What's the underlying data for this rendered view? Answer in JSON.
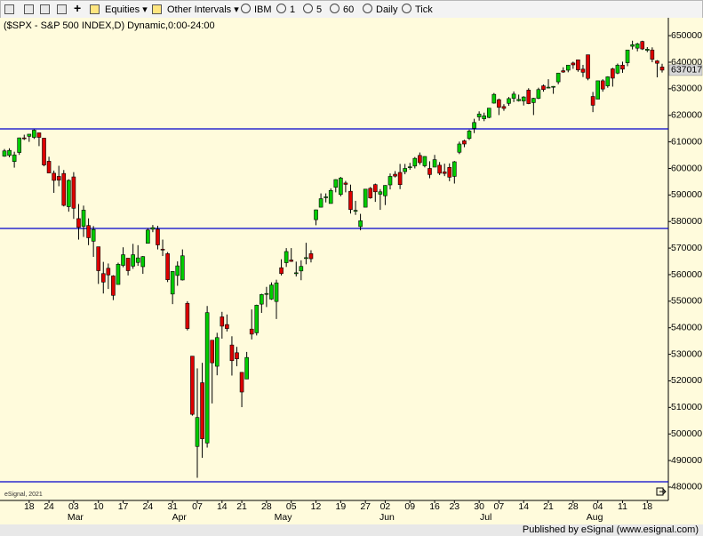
{
  "toolbar": {
    "items": [
      "Equities",
      "Other Intervals",
      "IBM",
      "1",
      "5",
      "60",
      "Daily",
      "Tick"
    ]
  },
  "footer": {
    "watermark": "eSignal, 2021",
    "published": "Published by eSignal (www.esignal.com)"
  },
  "chart_data": {
    "type": "candlestick",
    "title": "($SPX - S&P 500 INDEX,D) Dynamic,0:00-24:00",
    "up_color": "#00cc00",
    "down_color": "#dd0000",
    "hline_color": "#0000cc",
    "ylim": [
      475300,
      656400
    ],
    "yticks": [
      480000,
      490000,
      500000,
      510000,
      520000,
      530000,
      540000,
      550000,
      560000,
      570000,
      580000,
      590000,
      600000,
      610000,
      620000,
      630000,
      640000,
      650000
    ],
    "hlines": [
      614900,
      577400,
      482000
    ],
    "categories": [
      null,
      null,
      null,
      null,
      null,
      "18",
      null,
      null,
      null,
      "24",
      null,
      null,
      null,
      null,
      "03",
      null,
      null,
      null,
      null,
      "10",
      null,
      null,
      null,
      null,
      "17",
      null,
      null,
      null,
      null,
      "24",
      null,
      null,
      null,
      null,
      "31",
      null,
      null,
      null,
      null,
      "07",
      null,
      null,
      null,
      null,
      "14",
      null,
      null,
      null,
      "21",
      null,
      null,
      null,
      null,
      "28",
      null,
      null,
      null,
      null,
      "05",
      null,
      null,
      null,
      null,
      "12",
      null,
      null,
      null,
      null,
      "19",
      null,
      null,
      null,
      null,
      "27",
      null,
      null,
      null,
      "02",
      null,
      null,
      null,
      null,
      "09",
      null,
      null,
      null,
      null,
      "16",
      null,
      null,
      null,
      "23",
      null,
      null,
      null,
      null,
      "30",
      null,
      null,
      null,
      "07",
      null,
      null,
      null,
      null,
      "14",
      null,
      null,
      null,
      null,
      "21",
      null,
      null,
      null,
      null,
      "28",
      null,
      null,
      null,
      null,
      "04",
      null,
      null,
      null,
      null,
      "11",
      null,
      null,
      null,
      null,
      "18",
      null,
      null,
      null
    ],
    "months": [
      null,
      null,
      null,
      null,
      null,
      null,
      null,
      null,
      null,
      null,
      null,
      null,
      null,
      null,
      "Mar",
      null,
      null,
      null,
      null,
      null,
      null,
      null,
      null,
      null,
      null,
      null,
      null,
      null,
      null,
      null,
      null,
      null,
      null,
      null,
      null,
      "Apr",
      null,
      null,
      null,
      null,
      null,
      null,
      null,
      null,
      null,
      null,
      null,
      null,
      null,
      null,
      null,
      null,
      null,
      null,
      null,
      null,
      "May",
      null,
      null,
      null,
      null,
      null,
      null,
      null,
      null,
      null,
      null,
      null,
      null,
      null,
      null,
      null,
      null,
      null,
      null,
      null,
      null,
      "Jun",
      null,
      null,
      null,
      null,
      null,
      null,
      null,
      null,
      null,
      null,
      null,
      null,
      null,
      null,
      null,
      null,
      null,
      null,
      null,
      "Jul",
      null,
      null,
      null,
      null,
      null,
      null,
      null,
      null,
      null,
      null,
      null,
      null,
      null,
      null,
      null,
      null,
      null,
      null,
      null,
      null,
      null,
      "Aug",
      null,
      null,
      null,
      null,
      null,
      null,
      null,
      null,
      null,
      null,
      null,
      null,
      null,
      null
    ],
    "open": [
      604600,
      604900,
      602600,
      606000,
      611500,
      612100,
      611700,
      613400,
      611400,
      602700,
      598200,
      597000,
      598100,
      585600,
      596800,
      581100,
      578200,
      578500,
      572600,
      570500,
      560400,
      562400,
      559500,
      556300,
      563500,
      566200,
      563200,
      564600,
      563000,
      571800,
      577100,
      577100,
      569600,
      567900,
      552700,
      559700,
      558000,
      549200,
      529300,
      495300,
      519300,
      496600,
      535300,
      525500,
      544100,
      541200,
      533500,
      530600,
      523200,
      520700,
      539500,
      538100,
      548900,
      552900,
      550800,
      549900,
      562600,
      564500,
      565500,
      560600,
      561400,
      566300,
      567900,
      580700,
      585400,
      589100,
      586800,
      592900,
      590200,
      594500,
      591400,
      584100,
      578100,
      585400,
      592500,
      593900,
      590300,
      589700,
      593800,
      597800,
      598500,
      598800,
      600400,
      600900,
      604900,
      601000,
      600000,
      600500,
      601200,
      598700,
      600400,
      597000,
      606100,
      610400,
      611300,
      615100,
      619400,
      618700,
      619200,
      624600,
      625900,
      623300,
      624500,
      626400,
      625500,
      625400,
      629500,
      624800,
      626400,
      631100,
      630500,
      630700,
      632600,
      636800,
      637000,
      639700,
      640900,
      637400,
      642800,
      627100,
      626100,
      633000,
      631100,
      637500,
      635900,
      638900,
      639800,
      646000,
      645300,
      647800,
      644500,
      644600,
      640500,
      638200
    ],
    "high": [
      607300,
      607600,
      606300,
      611600,
      612700,
      612900,
      614700,
      613400,
      611400,
      604400,
      599200,
      601000,
      599400,
      595900,
      598600,
      586600,
      586000,
      581200,
      578300,
      570500,
      564800,
      564200,
      559800,
      564500,
      570300,
      566200,
      571600,
      571100,
      567000,
      577500,
      578700,
      578400,
      573200,
      568500,
      561300,
      565000,
      569500,
      550000,
      529300,
      524700,
      526800,
      548200,
      535300,
      538100,
      546000,
      545000,
      536800,
      532800,
      523200,
      530900,
      546900,
      548700,
      552800,
      555400,
      557100,
      558100,
      565800,
      570000,
      570000,
      564900,
      565400,
      572000,
      569200,
      584500,
      590600,
      590600,
      592500,
      595900,
      596800,
      595300,
      593900,
      587800,
      582900,
      592200,
      593000,
      594300,
      592200,
      593700,
      598100,
      599000,
      601700,
      601700,
      602100,
      604300,
      606000,
      604600,
      602700,
      605100,
      602400,
      601800,
      601900,
      602800,
      610100,
      610800,
      614600,
      618700,
      621500,
      621000,
      622700,
      628400,
      626300,
      624200,
      626900,
      629000,
      627800,
      627200,
      630200,
      626600,
      630400,
      631600,
      633600,
      631000,
      636000,
      638100,
      639000,
      640200,
      641000,
      639000,
      642800,
      628800,
      633000,
      633600,
      634700,
      637900,
      639500,
      640200,
      644600,
      648100,
      647300,
      648100,
      645700,
      645600,
      640800,
      639400
    ],
    "low": [
      604400,
      604200,
      600300,
      605100,
      610700,
      610000,
      611100,
      608400,
      600800,
      598200,
      590800,
      593300,
      585700,
      583700,
      581000,
      573200,
      574200,
      571100,
      566700,
      556500,
      552900,
      554600,
      550400,
      556300,
      562800,
      559700,
      562200,
      563300,
      560300,
      571800,
      576000,
      569500,
      567000,
      557200,
      548900,
      555800,
      557800,
      539000,
      506900,
      483500,
      491000,
      494900,
      511500,
      522100,
      535900,
      538600,
      522000,
      525500,
      510100,
      520700,
      535600,
      537100,
      545600,
      547800,
      550500,
      543300,
      559700,
      562900,
      564800,
      559300,
      557900,
      563900,
      564600,
      578600,
      585300,
      587200,
      586800,
      591000,
      589500,
      591000,
      583000,
      582500,
      576700,
      585400,
      588600,
      587400,
      584400,
      586200,
      592100,
      596600,
      592200,
      597800,
      599500,
      600000,
      601400,
      600400,
      596300,
      600500,
      597500,
      597100,
      595200,
      594300,
      605400,
      608000,
      610700,
      613300,
      618000,
      617800,
      618900,
      624400,
      620100,
      621700,
      623600,
      625000,
      625200,
      623700,
      624200,
      620100,
      626100,
      628900,
      630200,
      628100,
      631700,
      636000,
      636200,
      637500,
      636400,
      634400,
      633200,
      621200,
      626100,
      628900,
      630400,
      630800,
      635500,
      636000,
      638500,
      644800,
      644100,
      644600,
      643800,
      640000,
      634300,
      636100
    ],
    "close": [
      606600,
      606800,
      605100,
      611500,
      611400,
      612900,
      614400,
      611700,
      601300,
      598300,
      595500,
      595600,
      586100,
      595500,
      585000,
      577800,
      584300,
      573900,
      577000,
      561500,
      557200,
      559900,
      552200,
      563900,
      567500,
      561500,
      567500,
      566300,
      566800,
      576800,
      577700,
      571200,
      569300,
      558100,
      561200,
      563300,
      567100,
      539700,
      507400,
      506200,
      498200,
      545700,
      526800,
      536300,
      540600,
      539700,
      527600,
      528300,
      515800,
      528800,
      537600,
      548500,
      552500,
      552900,
      556100,
      556900,
      560400,
      568700,
      565000,
      560700,
      563100,
      566400,
      566000,
      584400,
      588600,
      589300,
      591700,
      595800,
      596400,
      594000,
      584500,
      584200,
      580300,
      592200,
      588900,
      591200,
      591200,
      593600,
      597000,
      597100,
      593900,
      600000,
      600600,
      603800,
      602200,
      604500,
      597700,
      603300,
      598200,
      598100,
      596700,
      602500,
      609200,
      609200,
      614100,
      617300,
      620500,
      619800,
      622700,
      627900,
      623000,
      622600,
      626300,
      628000,
      626000,
      626900,
      624400,
      626400,
      629700,
      629700,
      630600,
      630900,
      635900,
      636300,
      638900,
      639000,
      637100,
      636200,
      633900,
      623800,
      633000,
      629900,
      634500,
      634000,
      638900,
      637400,
      644600,
      646600,
      646900,
      645000,
      644900,
      641100,
      639600,
      637017
    ]
  }
}
